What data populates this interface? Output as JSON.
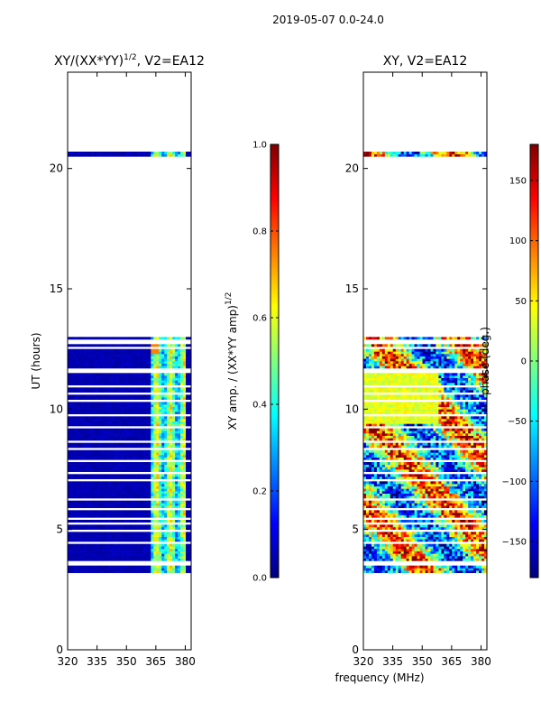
{
  "figure": {
    "suptitle": "2019-05-07 0.0-24.0",
    "xlabel": "frequency (MHz)"
  },
  "colormap_stops": [
    "#00007f",
    "#0000ff",
    "#007fff",
    "#00ffff",
    "#7fff7f",
    "#ffff00",
    "#ff7f00",
    "#ff0000",
    "#7f0000"
  ],
  "chart_data": [
    {
      "type": "heatmap",
      "title_main": "XY/(XX*YY)",
      "title_exp": "1/2",
      "title_tail": ", V2=EA12",
      "xlabel": "",
      "ylabel": "UT (hours)",
      "xlim": [
        320,
        383
      ],
      "ylim": [
        0,
        24
      ],
      "xticks": [
        "320",
        "335",
        "350",
        "365",
        "380"
      ],
      "yticks": [
        "0",
        "5",
        "10",
        "15",
        "20"
      ],
      "colorbar": {
        "label_main": "XY amp. / (XX*YY amp)",
        "label_exp": "1/2",
        "range": [
          0.0,
          1.0
        ],
        "ticks": [
          "0.0",
          "0.2",
          "0.4",
          "0.6",
          "0.8",
          "1.0"
        ]
      },
      "data_blocks_hours": [
        [
          3.2,
          13.0
        ],
        [
          20.5,
          20.7
        ]
      ],
      "bright_freq_range_mhz": [
        362,
        380
      ]
    },
    {
      "type": "heatmap",
      "title_main": "XY, V2=EA12",
      "xlabel": "",
      "ylabel": "",
      "xlim": [
        320,
        383
      ],
      "ylim": [
        0,
        24
      ],
      "xticks": [
        "320",
        "335",
        "350",
        "365",
        "380"
      ],
      "yticks": [
        "0",
        "5",
        "10",
        "15",
        "20"
      ],
      "colorbar": {
        "label_main": "phase (deg.)",
        "range": [
          -180,
          180
        ],
        "ticks": [
          "−150",
          "−100",
          "−50",
          "0",
          "50",
          "100",
          "150"
        ],
        "tick_values": [
          -150,
          -100,
          -50,
          0,
          50,
          100,
          150
        ]
      },
      "data_blocks_hours": [
        [
          3.2,
          13.0
        ],
        [
          20.5,
          20.7
        ]
      ]
    }
  ]
}
